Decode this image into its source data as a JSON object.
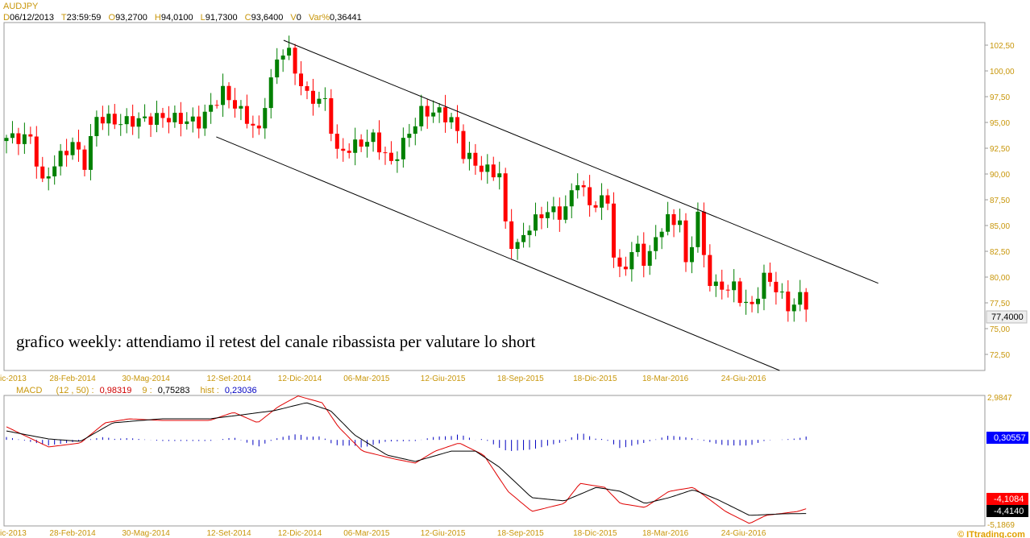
{
  "header": {
    "symbol": "AUDJPY",
    "d_label": "D",
    "d_value": "06/12/2013",
    "t_label": "T",
    "t_value": "23:59:59",
    "o_label": "O",
    "o_value": "93,2700",
    "h_label": "H",
    "h_value": "94,0100",
    "l_label": "L",
    "l_value": "91,7300",
    "c_label": "C",
    "c_value": "93,6400",
    "v_label": "V",
    "v_value": "0",
    "var_label": "Var%",
    "var_value": "0,36441"
  },
  "annotation": "grafico weekly: attendiamo il retest del canale ribassista per valutare lo short",
  "last_price_label": "77,4000",
  "macd_header": {
    "name": "MACD",
    "params": "(12 , 50) :",
    "macd": "0,98319",
    "signal_label": "9 :",
    "signal": "0,75283",
    "hist_label": "hist :",
    "hist": "0,23036"
  },
  "macd_labels": {
    "top": "2,9847",
    "bottom": "-5,1869",
    "hist_box": "0,30557",
    "macd_box": "-4,1084",
    "signal_box": "-4,4140"
  },
  "watermark": "© ITtrading.com",
  "chart_data": [
    {
      "type": "candlestick",
      "title": "AUDJPY weekly",
      "ylim": [
        70.94,
        104.69
      ],
      "yticks": [
        "102,50",
        "100,00",
        "97,50",
        "95,00",
        "92,50",
        "90,00",
        "87,50",
        "85,00",
        "82,50",
        "80,00",
        "77,50",
        "75,00",
        "72,50"
      ],
      "ytick_values": [
        102.5,
        100,
        97.5,
        95,
        92.5,
        90,
        87.5,
        85,
        82.5,
        80,
        77.5,
        75,
        72.5
      ],
      "weeks": 134,
      "xticks": [
        {
          "week": -1.6,
          "label": "ic-2013"
        },
        {
          "week": 11,
          "label": "28-Feb-2014"
        },
        {
          "week": 23.2,
          "label": "30-Mag-2014"
        },
        {
          "week": 37,
          "label": "12-Set-2014"
        },
        {
          "week": 48.8,
          "label": "12-Dic-2014"
        },
        {
          "week": 59.9,
          "label": "06-Mar-2015"
        },
        {
          "week": 72.6,
          "label": "12-Giu-2015"
        },
        {
          "week": 85.5,
          "label": "18-Sep-2015"
        },
        {
          "week": 97.9,
          "label": "18-Dic-2015"
        },
        {
          "week": 109.6,
          "label": "18-Mar-2016"
        },
        {
          "week": 122.6,
          "label": "24-Giu-2016"
        }
      ],
      "close_anchors": [
        [
          0,
          93.5
        ],
        [
          4,
          93.5
        ],
        [
          6,
          89
        ],
        [
          8,
          91
        ],
        [
          11,
          93
        ],
        [
          13,
          91
        ],
        [
          15,
          95.5
        ],
        [
          19,
          95
        ],
        [
          26,
          95.5
        ],
        [
          32,
          95
        ],
        [
          36,
          98
        ],
        [
          39,
          96
        ],
        [
          42,
          94
        ],
        [
          43,
          97
        ],
        [
          45,
          101
        ],
        [
          46.5,
          102.5
        ],
        [
          48,
          100
        ],
        [
          50,
          97.5
        ],
        [
          53,
          97
        ],
        [
          55,
          92
        ],
        [
          57,
          92.5
        ],
        [
          61,
          93.5
        ],
        [
          64,
          91
        ],
        [
          67,
          94
        ],
        [
          69,
          96
        ],
        [
          72,
          96
        ],
        [
          74.5,
          95
        ],
        [
          76,
          92
        ],
        [
          79,
          90.5
        ],
        [
          82,
          90
        ],
        [
          83,
          85
        ],
        [
          84.5,
          82.5
        ],
        [
          87,
          85
        ],
        [
          90,
          86.5
        ],
        [
          92.5,
          86
        ],
        [
          95,
          89.5
        ],
        [
          97,
          87
        ],
        [
          100,
          87.5
        ],
        [
          101,
          82
        ],
        [
          102,
          80.5
        ],
        [
          105,
          83
        ],
        [
          106.5,
          81
        ],
        [
          108,
          84
        ],
        [
          110,
          85.5
        ],
        [
          112.5,
          85.5
        ],
        [
          113,
          81
        ],
        [
          115,
          86
        ],
        [
          116.5,
          80
        ],
        [
          118,
          79
        ],
        [
          121,
          79
        ],
        [
          122,
          78
        ],
        [
          124,
          77
        ],
        [
          126,
          80
        ],
        [
          128,
          79
        ],
        [
          130,
          77
        ],
        [
          132,
          78
        ],
        [
          133,
          77.4
        ]
      ],
      "channel": {
        "upper": [
          [
            46.1,
            102.97
          ],
          [
            145,
            79.4
          ]
        ],
        "lower": [
          [
            34.9,
            93.6
          ],
          [
            128.6,
            70.9
          ]
        ]
      }
    },
    {
      "type": "line",
      "title": "MACD (12, 50) signal 9",
      "ylim": [
        -5.1869,
        2.9847
      ],
      "series": [
        {
          "name": "MACD",
          "color": "#e00000",
          "anchors": [
            [
              0,
              1.02
            ],
            [
              7,
              -0.24
            ],
            [
              12.3,
              0.01
            ],
            [
              16.4,
              1.27
            ],
            [
              20.4,
              1.52
            ],
            [
              25.7,
              1.42
            ],
            [
              33.8,
              1.42
            ],
            [
              37.8,
              1.93
            ],
            [
              41.8,
              1.27
            ],
            [
              45.2,
              2.28
            ],
            [
              48.5,
              2.95
            ],
            [
              52.5,
              2.53
            ],
            [
              55.2,
              1.02
            ],
            [
              59.2,
              -0.5
            ],
            [
              64.6,
              -1.0
            ],
            [
              68,
              -1.25
            ],
            [
              71.3,
              -0.5
            ],
            [
              75.3,
              0.01
            ],
            [
              79.4,
              -0.75
            ],
            [
              83.4,
              -3.02
            ],
            [
              87.4,
              -4.28
            ],
            [
              92.8,
              -3.78
            ],
            [
              95.4,
              -2.52
            ],
            [
              99.5,
              -2.77
            ],
            [
              102.1,
              -3.78
            ],
            [
              106.2,
              -4.03
            ],
            [
              110.2,
              -3.02
            ],
            [
              114.2,
              -2.77
            ],
            [
              116.9,
              -3.52
            ],
            [
              119.6,
              -4.28
            ],
            [
              123.6,
              -5.04
            ],
            [
              126.3,
              -4.53
            ],
            [
              131.6,
              -4.28
            ],
            [
              133,
              -4.11
            ]
          ]
        },
        {
          "name": "Signal",
          "color": "#000000",
          "anchors": [
            [
              0,
              0.76
            ],
            [
              7,
              0.26
            ],
            [
              12.3,
              0.11
            ],
            [
              17.7,
              1.27
            ],
            [
              25.7,
              1.52
            ],
            [
              33.8,
              1.52
            ],
            [
              39.1,
              1.77
            ],
            [
              44.5,
              2.03
            ],
            [
              49.9,
              2.53
            ],
            [
              53.9,
              2.03
            ],
            [
              57.9,
              0.51
            ],
            [
              63.3,
              -0.75
            ],
            [
              68,
              -1.15
            ],
            [
              74,
              -0.5
            ],
            [
              78,
              -0.5
            ],
            [
              82,
              -1.51
            ],
            [
              87.4,
              -3.42
            ],
            [
              92.8,
              -3.62
            ],
            [
              98.1,
              -2.77
            ],
            [
              102.1,
              -3.02
            ],
            [
              106.2,
              -3.78
            ],
            [
              110.2,
              -3.42
            ],
            [
              114.2,
              -2.92
            ],
            [
              118.2,
              -3.52
            ],
            [
              123.6,
              -4.53
            ],
            [
              129,
              -4.43
            ],
            [
              133,
              -4.41
            ]
          ]
        }
      ],
      "histogram": "MACD minus Signal"
    }
  ]
}
